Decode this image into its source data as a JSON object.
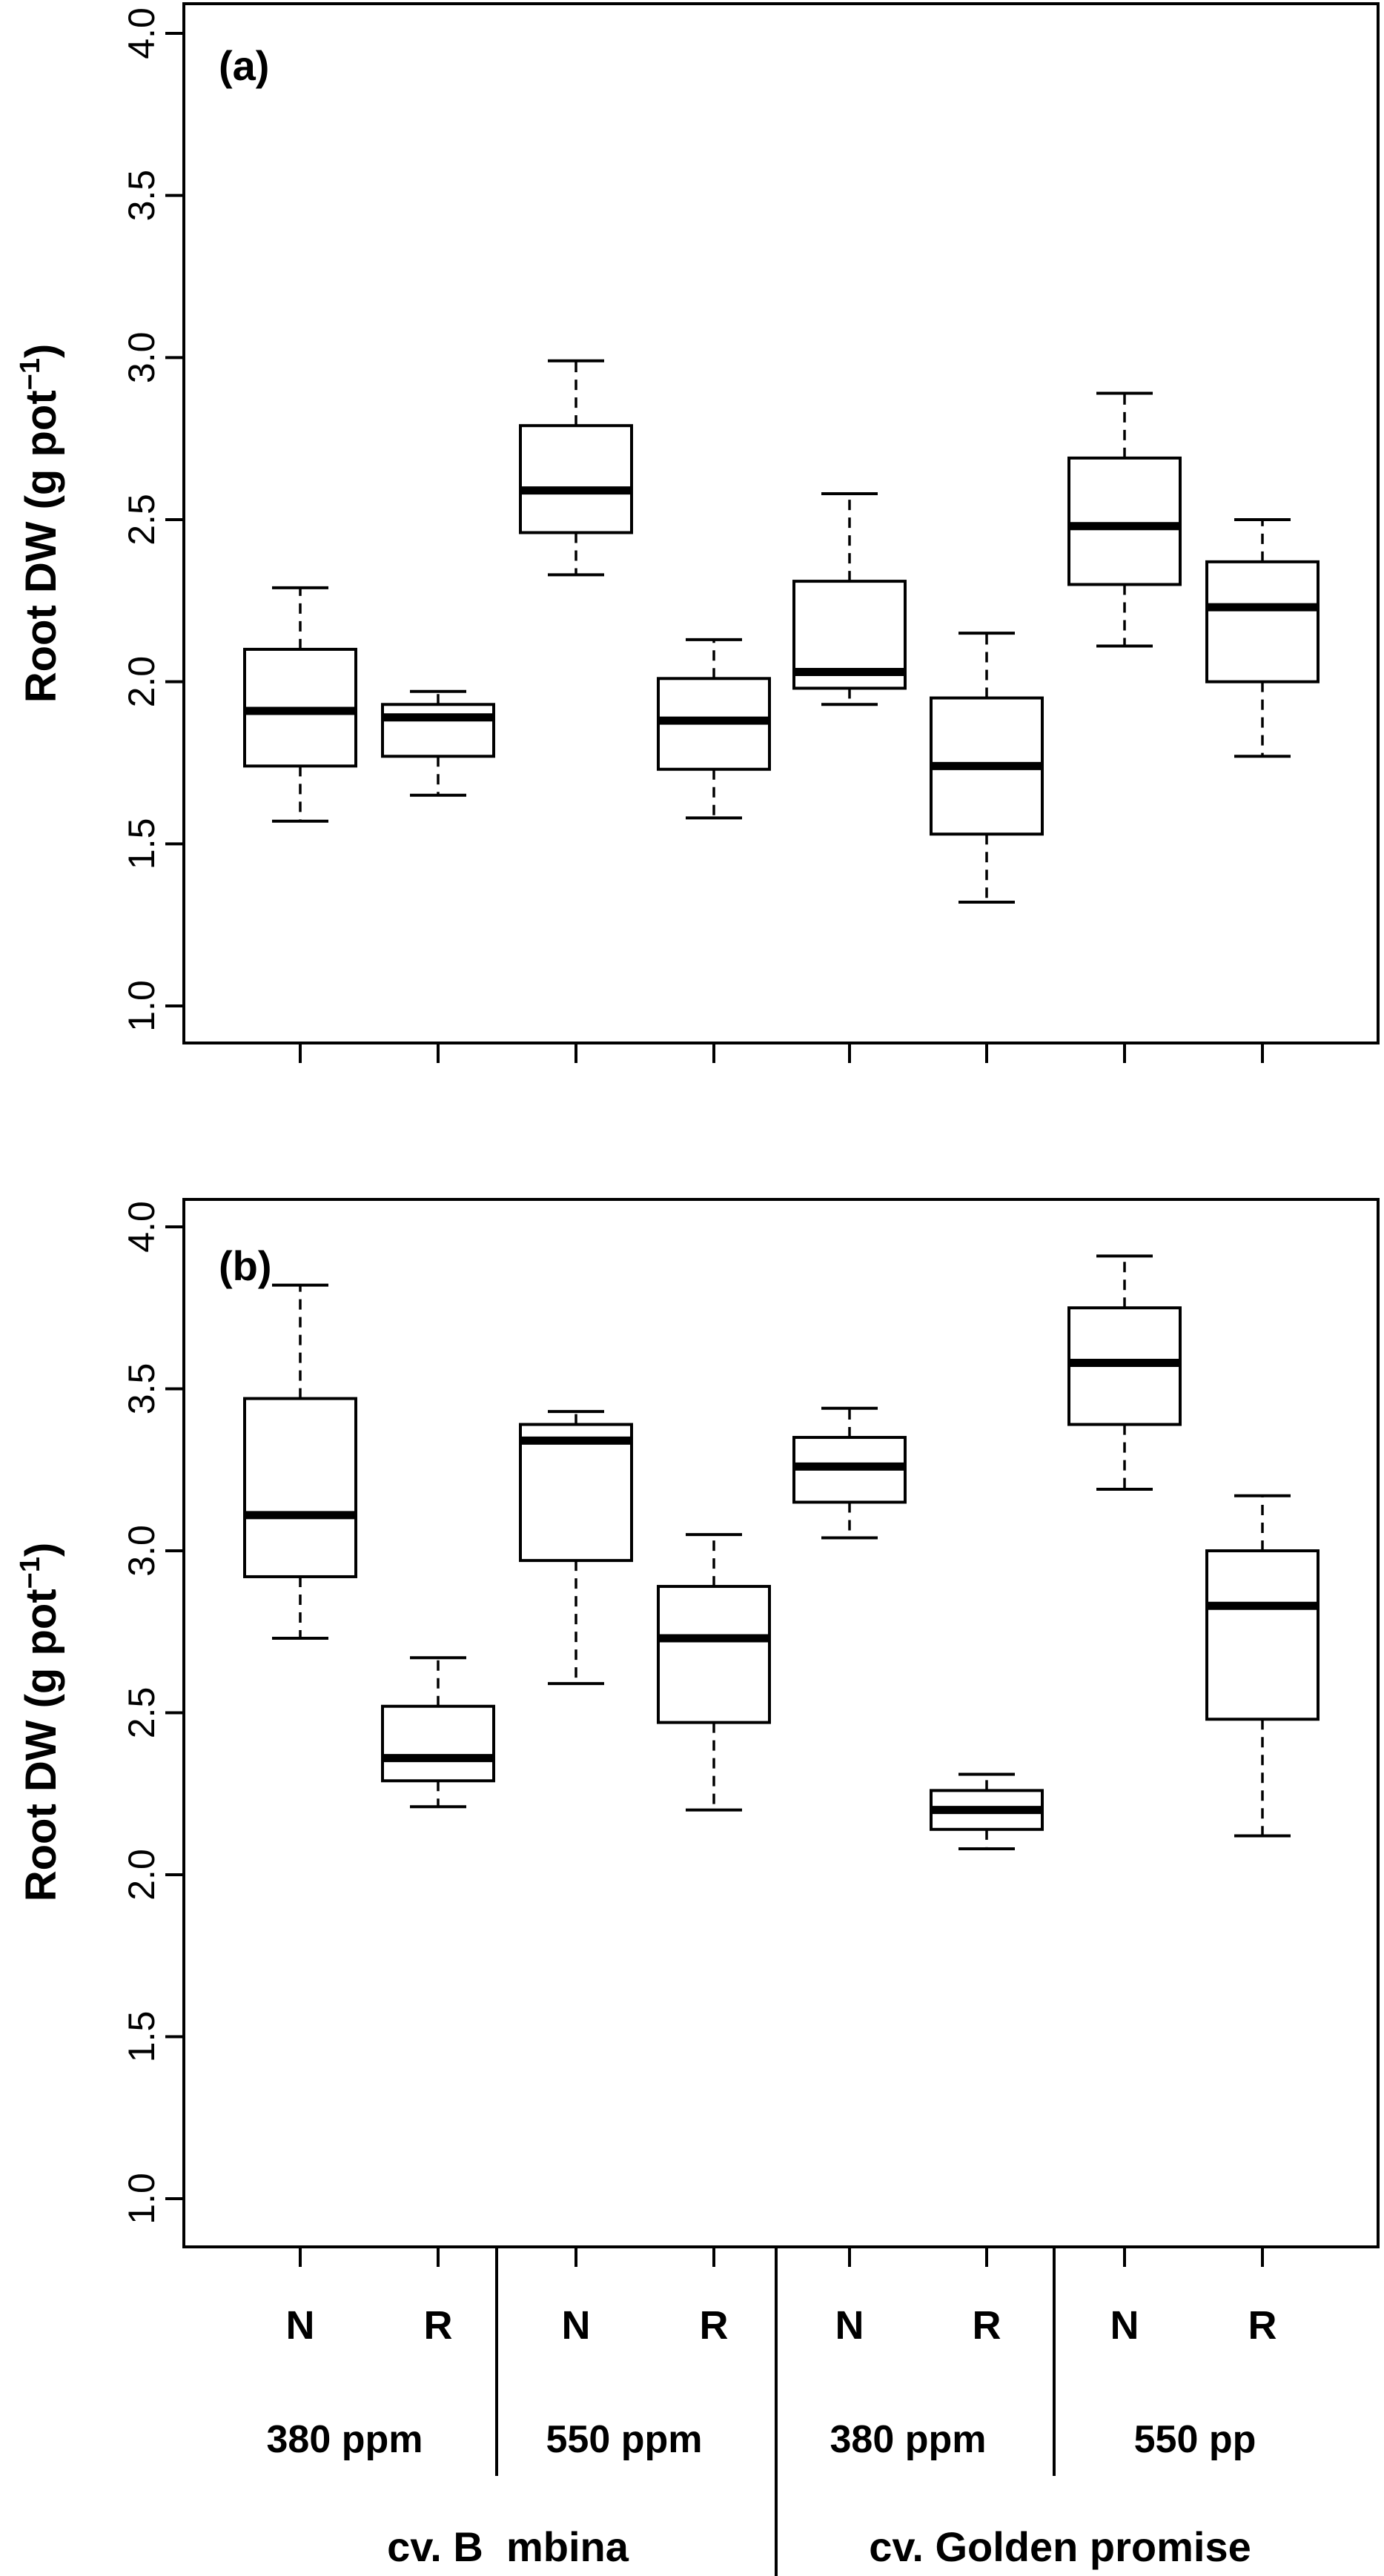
{
  "chart_data": [
    {
      "type": "boxplot",
      "panel_label": "(a)",
      "ylabel": "Root DW (g pot",
      "ylabel_sup": "−1",
      "ylabel_close": ")",
      "ylim": [
        1.0,
        4.0
      ],
      "yticks": [
        "1.0",
        "1.5",
        "2.0",
        "2.5",
        "3.0",
        "3.5",
        "4.0"
      ],
      "categories": [
        "N",
        "R",
        "N",
        "R",
        "N",
        "R",
        "N",
        "R"
      ],
      "boxes": [
        {
          "min": 1.57,
          "q1": 1.74,
          "median": 1.91,
          "q3": 2.1,
          "max": 2.29
        },
        {
          "min": 1.65,
          "q1": 1.77,
          "median": 1.89,
          "q3": 1.93,
          "max": 1.97
        },
        {
          "min": 2.33,
          "q1": 2.46,
          "median": 2.59,
          "q3": 2.79,
          "max": 2.99
        },
        {
          "min": 1.58,
          "q1": 1.73,
          "median": 1.88,
          "q3": 2.01,
          "max": 2.13
        },
        {
          "min": 1.93,
          "q1": 1.98,
          "median": 2.03,
          "q3": 2.31,
          "max": 2.58
        },
        {
          "min": 1.32,
          "q1": 1.53,
          "median": 1.74,
          "q3": 1.95,
          "max": 2.15
        },
        {
          "min": 2.11,
          "q1": 2.3,
          "median": 2.48,
          "q3": 2.69,
          "max": 2.89
        },
        {
          "min": 1.77,
          "q1": 2.0,
          "median": 2.23,
          "q3": 2.37,
          "max": 2.5
        }
      ]
    },
    {
      "type": "boxplot",
      "panel_label": "(b)",
      "ylabel": "Root DW (g pot",
      "ylabel_sup": "−1",
      "ylabel_close": ")",
      "ylim": [
        1.0,
        4.0
      ],
      "yticks": [
        "1.0",
        "1.5",
        "2.0",
        "2.5",
        "3.0",
        "3.5",
        "4.0"
      ],
      "categories": [
        "N",
        "R",
        "N",
        "R",
        "N",
        "R",
        "N",
        "R"
      ],
      "boxes": [
        {
          "min": 2.73,
          "q1": 2.92,
          "median": 3.11,
          "q3": 3.47,
          "max": 3.82
        },
        {
          "min": 2.21,
          "q1": 2.29,
          "median": 2.36,
          "q3": 2.52,
          "max": 2.67
        },
        {
          "min": 2.59,
          "q1": 2.97,
          "median": 3.34,
          "q3": 3.39,
          "max": 3.43
        },
        {
          "min": 2.2,
          "q1": 2.47,
          "median": 2.73,
          "q3": 2.89,
          "max": 3.05
        },
        {
          "min": 3.04,
          "q1": 3.15,
          "median": 3.26,
          "q3": 3.35,
          "max": 3.44
        },
        {
          "min": 2.08,
          "q1": 2.14,
          "median": 2.2,
          "q3": 2.26,
          "max": 2.31
        },
        {
          "min": 3.19,
          "q1": 3.39,
          "median": 3.58,
          "q3": 3.75,
          "max": 3.91
        },
        {
          "min": 2.12,
          "q1": 2.48,
          "median": 2.83,
          "q3": 3.0,
          "max": 3.17
        }
      ]
    }
  ],
  "x_groups": {
    "co2_labels": [
      "380 ppm",
      "550 ppm",
      "380 ppm",
      "550 pp"
    ],
    "cultivar_labels": [
      "cv. B  mbina",
      "cv. Golden promise"
    ]
  }
}
